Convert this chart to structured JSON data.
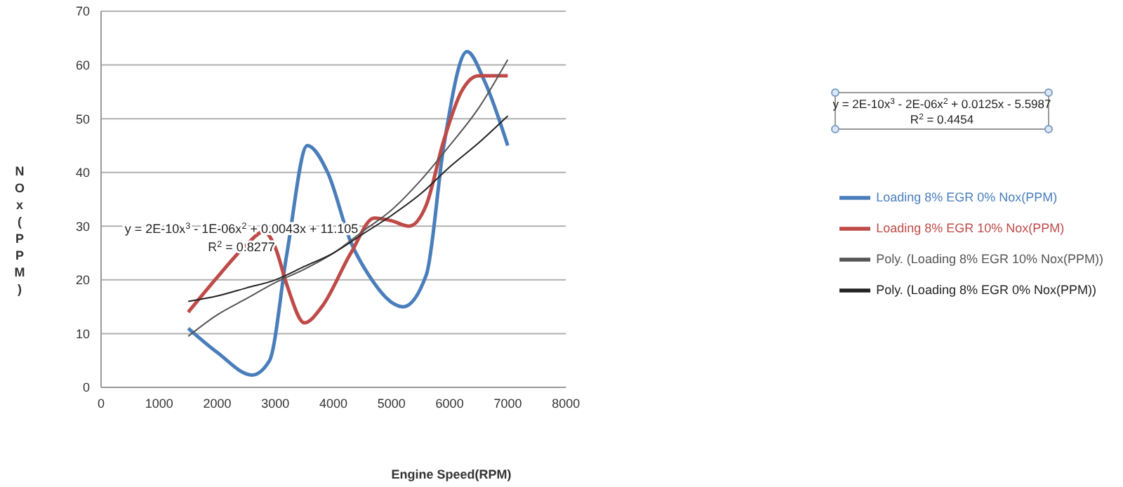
{
  "chart_data": {
    "type": "line",
    "xlabel": "Engine Speed(RPM)",
    "ylabel": "NOx(PPM)",
    "xlim": [
      0,
      8000
    ],
    "xticks": [
      0,
      1000,
      2000,
      3000,
      4000,
      5000,
      6000,
      7000,
      8000
    ],
    "ylim": [
      0,
      70
    ],
    "yticks": [
      0,
      10,
      20,
      30,
      40,
      50,
      60,
      70
    ],
    "grid": "y",
    "legend": "right",
    "marker": "none",
    "line_style": "solid",
    "series": [
      {
        "name": "Loading 8% EGR 0% Nox(PPM)",
        "color": "#4a7ebb",
        "x": [
          1500,
          2000,
          2600,
          2900,
          3200,
          3550,
          3900,
          4300,
          4600,
          5200,
          5600,
          5900,
          6300,
          6600,
          7000
        ],
        "values": [
          11,
          6.5,
          2.3,
          5,
          25,
          45,
          40,
          27,
          21,
          15,
          21,
          45,
          62.5,
          57,
          45
        ]
      },
      {
        "name": "Loading 8% EGR 10% Nox(PPM)",
        "color": "#be4b48",
        "x": [
          1500,
          2000,
          2500,
          2800,
          3000,
          3200,
          3500,
          3800,
          4300,
          4700,
          5000,
          5300,
          5600,
          5900,
          6200,
          6500,
          7000
        ],
        "values": [
          14,
          20.5,
          26.5,
          29,
          26,
          19,
          12,
          15,
          25,
          31.5,
          31,
          30,
          34,
          46,
          55,
          58,
          58
        ]
      },
      {
        "name": "Poly. (Loading 8% EGR 10% Nox(PPM))",
        "color": "#555555",
        "x": [
          1500,
          2000,
          2500,
          3000,
          3500,
          4000,
          4500,
          5000,
          5500,
          6000,
          6500,
          7000
        ],
        "values": [
          9.5,
          13.5,
          16.5,
          19.5,
          22,
          25,
          29,
          33,
          38.5,
          45,
          52,
          61
        ]
      },
      {
        "name": "Poly. (Loading 8% EGR 0% Nox(PPM))",
        "color": "#222222",
        "x": [
          1500,
          2000,
          2500,
          3000,
          3500,
          4000,
          4500,
          5000,
          5500,
          6000,
          6500,
          7000
        ],
        "values": [
          16,
          17,
          18.5,
          20,
          22.5,
          25,
          28.5,
          32,
          36,
          41,
          45.5,
          50.5
        ]
      }
    ],
    "annotations": [
      "y = 2E-10x$^{3}$ - 1E-06x$^{2}$ + 0.0043x + 11.105",
      "R$^{2}$ = 0.8277",
      "y = 2E-10x$^{3}$ - 2E-06x$^{2}$ + 0.0125x - 5.5987",
      "R$^{2}$ = 0.4454"
    ]
  }
}
